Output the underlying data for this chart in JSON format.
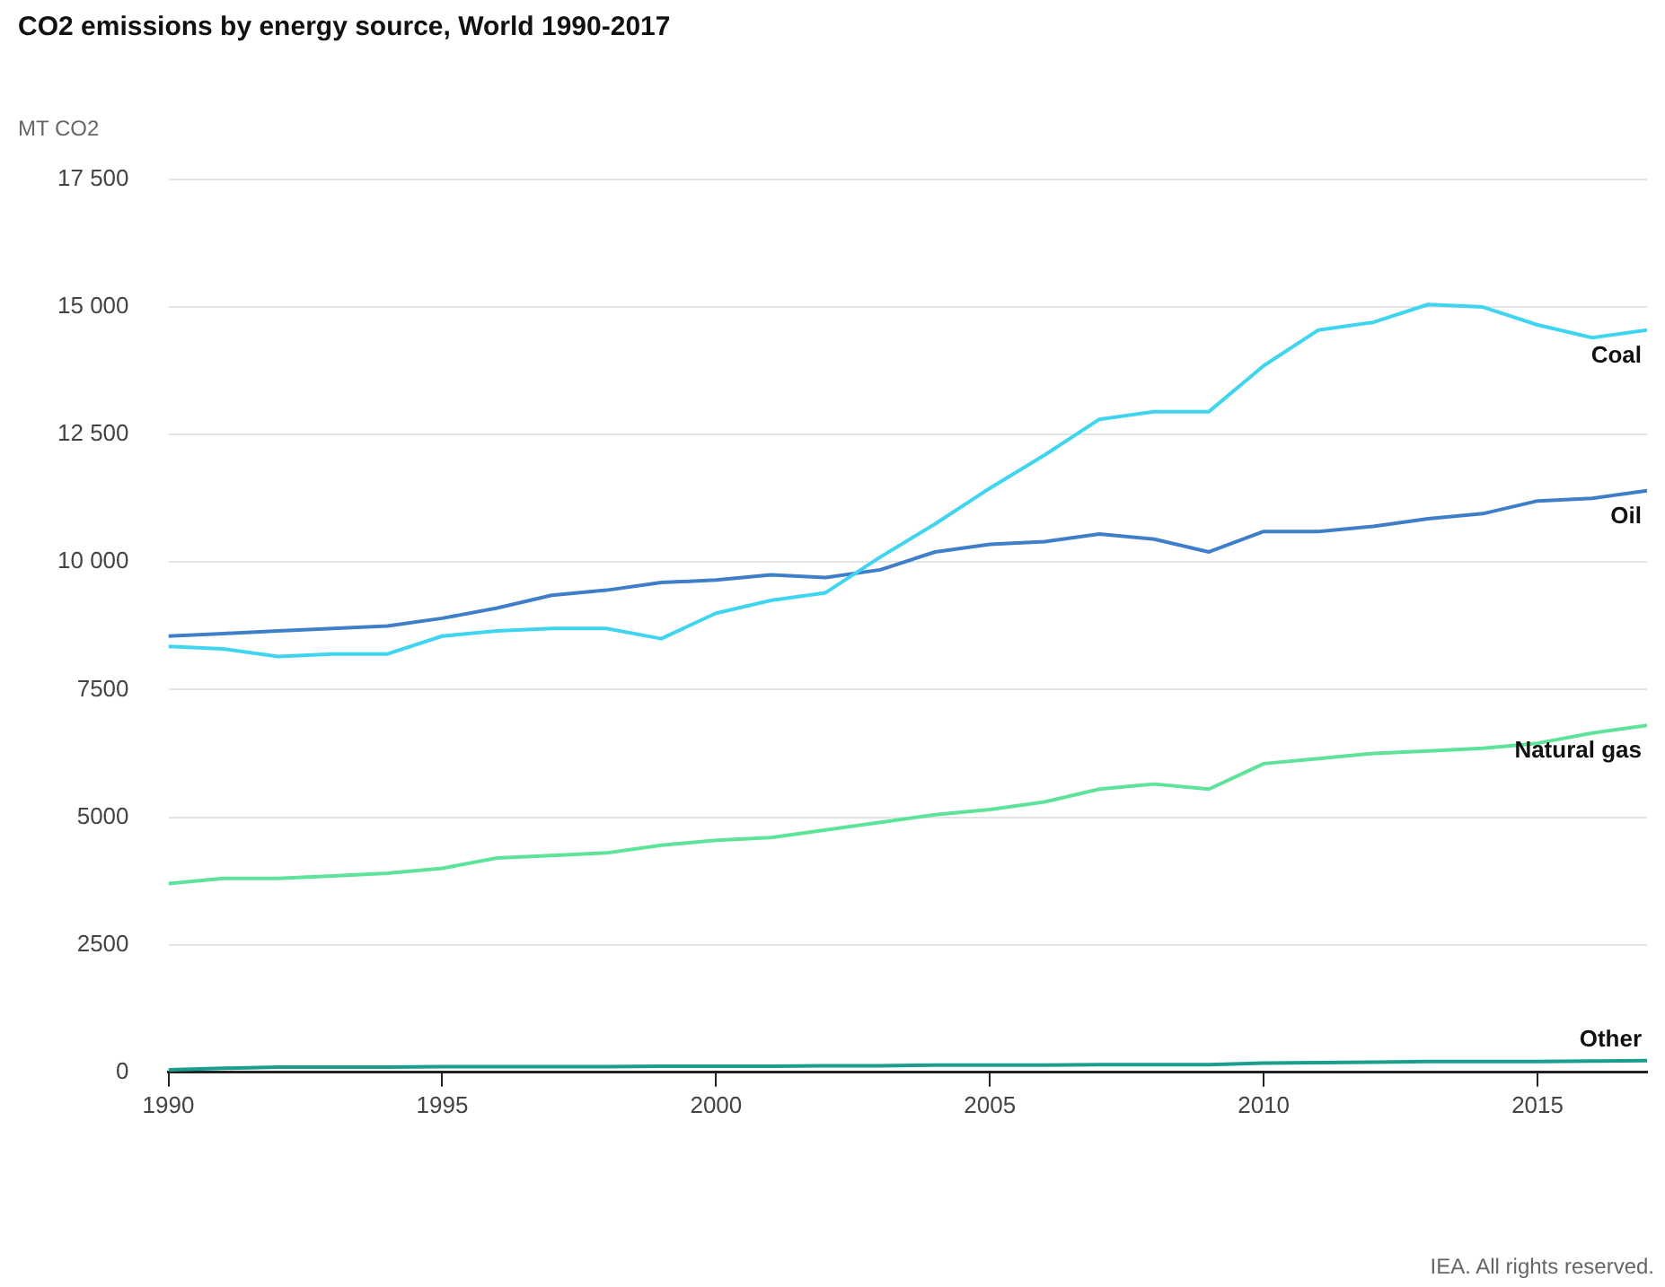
{
  "chart_data": {
    "type": "line",
    "title": "CO2 emissions by energy source, World 1990-2017",
    "ylabel": "MT CO2",
    "x": [
      1990,
      1991,
      1992,
      1993,
      1994,
      1995,
      1996,
      1997,
      1998,
      1999,
      2000,
      2001,
      2002,
      2003,
      2004,
      2005,
      2006,
      2007,
      2008,
      2009,
      2010,
      2011,
      2012,
      2013,
      2014,
      2015,
      2016,
      2017
    ],
    "series": [
      {
        "name": "Coal",
        "color": "#3fd5f0",
        "values": [
          8350,
          8300,
          8150,
          8200,
          8200,
          8550,
          8650,
          8700,
          8700,
          8500,
          9000,
          9250,
          9400,
          10100,
          10750,
          11450,
          12100,
          12800,
          12950,
          12950,
          13850,
          14550,
          14700,
          15050,
          15000,
          14650,
          14400,
          14550
        ]
      },
      {
        "name": "Oil",
        "color": "#3f7fc9",
        "values": [
          8550,
          8600,
          8650,
          8700,
          8750,
          8900,
          9100,
          9350,
          9450,
          9600,
          9650,
          9750,
          9700,
          9850,
          10200,
          10350,
          10400,
          10550,
          10450,
          10200,
          10600,
          10600,
          10700,
          10850,
          10950,
          11200,
          11250,
          11400
        ]
      },
      {
        "name": "Natural gas",
        "color": "#5ee39a",
        "values": [
          3700,
          3800,
          3800,
          3850,
          3900,
          4000,
          4200,
          4250,
          4300,
          4450,
          4550,
          4600,
          4750,
          4900,
          5050,
          5150,
          5300,
          5550,
          5650,
          5550,
          6050,
          6150,
          6250,
          6300,
          6350,
          6450,
          6650,
          6800
        ]
      },
      {
        "name": "Other",
        "color": "#1a9e8e",
        "values": [
          50,
          80,
          100,
          100,
          100,
          110,
          110,
          110,
          110,
          120,
          120,
          120,
          130,
          130,
          140,
          140,
          140,
          150,
          150,
          150,
          180,
          190,
          200,
          210,
          210,
          210,
          220,
          230
        ]
      }
    ],
    "xlim": [
      1990,
      2017
    ],
    "xticks": [
      1990,
      1995,
      2000,
      2005,
      2010,
      2015
    ],
    "ylim": [
      0,
      17500
    ],
    "yticks": [
      0,
      2500,
      5000,
      7500,
      {
        "value": 10000,
        "label": "10 000"
      },
      {
        "value": 12500,
        "label": "12 500"
      },
      {
        "value": 15000,
        "label": "15 000"
      },
      {
        "value": 17500,
        "label": "17 500"
      }
    ],
    "grid": "y",
    "legend": false,
    "marker": "none",
    "line_style": "solid",
    "annotations": [
      "IEA. All rights reserved."
    ]
  }
}
